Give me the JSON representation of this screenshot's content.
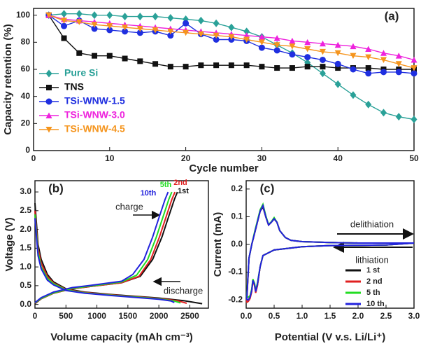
{
  "chart_data": [
    {
      "type": "line",
      "title": "(a)",
      "x_label": "Cycle number",
      "y_label": "Capacity retention (%)",
      "xlim": [
        0,
        50
      ],
      "ylim": [
        0,
        105
      ],
      "xticks": [
        0,
        10,
        20,
        30,
        40,
        50
      ],
      "yticks": [
        0,
        20,
        40,
        60,
        80,
        100
      ],
      "x": [
        2,
        4,
        6,
        8,
        10,
        12,
        14,
        16,
        18,
        20,
        22,
        24,
        26,
        28,
        30,
        32,
        34,
        36,
        38,
        40,
        42,
        44,
        46,
        48,
        50
      ],
      "series": [
        {
          "name": "Pure Si",
          "color": "#2aa198",
          "marker": "diamond",
          "values": [
            100,
            101,
            101,
            100,
            100,
            99,
            99,
            99,
            98,
            97,
            96,
            94,
            91,
            88,
            84,
            78,
            72,
            65,
            57,
            49,
            41,
            34,
            28,
            25,
            23
          ]
        },
        {
          "name": "TNS",
          "color": "#111111",
          "marker": "square",
          "values": [
            100,
            83,
            72,
            70,
            70,
            68,
            66,
            64,
            62,
            62,
            63,
            63,
            63,
            63,
            62,
            61,
            61,
            62,
            62,
            61,
            61,
            61,
            60,
            60,
            60
          ]
        },
        {
          "name": "TSi-WNW-1.5",
          "color": "#1f2fe0",
          "marker": "circle",
          "values": [
            100,
            92,
            96,
            90,
            89,
            88,
            87,
            88,
            85,
            94,
            86,
            82,
            82,
            81,
            76,
            74,
            71,
            69,
            67,
            64,
            60,
            57,
            58,
            58,
            57
          ]
        },
        {
          "name": "TSi-WNW-3.0",
          "color": "#ee22dd",
          "marker": "triangle-up",
          "values": [
            100,
            97,
            96,
            95,
            94,
            93,
            92,
            91,
            90,
            89,
            88,
            87,
            86,
            85,
            84,
            83,
            81,
            80,
            79,
            78,
            77,
            75,
            72,
            70,
            67
          ]
        },
        {
          "name": "TSi-WNW-4.5",
          "color": "#f5951e",
          "marker": "triangle-down",
          "values": [
            100,
            96,
            95,
            93,
            92,
            91,
            90,
            89,
            88,
            87,
            86,
            85,
            84,
            82,
            80,
            78,
            77,
            75,
            73,
            72,
            70,
            69,
            67,
            64,
            61
          ]
        }
      ]
    },
    {
      "type": "curves",
      "title": "(b)",
      "x_label": "Volume capacity (mAh cm⁻³)",
      "y_label": "Voltage (V)",
      "annotations": [
        "charge",
        "discharge"
      ],
      "xlim": [
        0,
        2800
      ],
      "ylim": [
        -0.1,
        3.3
      ],
      "xticks": [
        0,
        500,
        1000,
        1500,
        2000,
        2500
      ],
      "yticks": [
        {
          "value": 0,
          "label": "0.0"
        },
        0.5,
        {
          "value": 1,
          "label": "1.0"
        },
        1.5,
        {
          "value": 2,
          "label": "2.0"
        },
        2.5,
        {
          "value": 3,
          "label": "3.0"
        }
      ],
      "series": [
        {
          "name": "1st",
          "color": "#111111",
          "discharge": {
            "x": [
              0,
              50,
              100,
              200,
              300,
              500,
              800,
              1200,
              1600,
              2000,
              2400,
              2700
            ],
            "y": [
              2.7,
              1.6,
              1.2,
              0.8,
              0.6,
              0.42,
              0.33,
              0.27,
              0.22,
              0.17,
              0.1,
              0.02
            ]
          },
          "charge": {
            "x": [
              0,
              100,
              300,
              600,
              1000,
              1400,
              1700,
              1900,
              2050,
              2150,
              2250,
              2300
            ],
            "y": [
              0.02,
              0.15,
              0.3,
              0.42,
              0.5,
              0.58,
              0.75,
              1.2,
              1.8,
              2.3,
              2.8,
              3.0
            ]
          }
        },
        {
          "name": "2nd",
          "color": "#e02020",
          "discharge": {
            "x": [
              0,
              50,
              100,
              200,
              300,
              500,
              800,
              1200,
              1600,
              2000,
              2300,
              2450
            ],
            "y": [
              2.5,
              1.5,
              1.1,
              0.75,
              0.57,
              0.4,
              0.32,
              0.26,
              0.21,
              0.16,
              0.1,
              0.03
            ]
          },
          "charge": {
            "x": [
              0,
              100,
              300,
              600,
              1000,
              1400,
              1680,
              1870,
              2010,
              2110,
              2210,
              2260
            ],
            "y": [
              0.03,
              0.15,
              0.3,
              0.42,
              0.5,
              0.58,
              0.75,
              1.2,
              1.8,
              2.3,
              2.8,
              3.0
            ]
          }
        },
        {
          "name": "5th",
          "color": "#22dd22",
          "discharge": {
            "x": [
              0,
              50,
              100,
              200,
              300,
              500,
              800,
              1200,
              1600,
              2000,
              2250,
              2350
            ],
            "y": [
              2.4,
              1.4,
              1.0,
              0.7,
              0.55,
              0.39,
              0.31,
              0.25,
              0.2,
              0.15,
              0.09,
              0.04
            ]
          },
          "charge": {
            "x": [
              0,
              100,
              300,
              600,
              1000,
              1400,
              1640,
              1820,
              1960,
              2060,
              2160,
              2210
            ],
            "y": [
              0.04,
              0.16,
              0.31,
              0.43,
              0.51,
              0.6,
              0.78,
              1.2,
              1.8,
              2.3,
              2.8,
              3.0
            ]
          }
        },
        {
          "name": "10th",
          "color": "#2222dd",
          "discharge": {
            "x": [
              0,
              50,
              100,
              200,
              300,
              500,
              800,
              1200,
              1600,
              2000,
              2200,
              2250
            ],
            "y": [
              2.3,
              1.3,
              0.95,
              0.65,
              0.52,
              0.37,
              0.3,
              0.24,
              0.19,
              0.14,
              0.09,
              0.05
            ]
          },
          "charge": {
            "x": [
              0,
              100,
              300,
              600,
              1000,
              1400,
              1580,
              1760,
              1900,
              2000,
              2100,
              2150
            ],
            "y": [
              0.05,
              0.18,
              0.33,
              0.45,
              0.53,
              0.62,
              0.8,
              1.2,
              1.8,
              2.3,
              2.8,
              3.0
            ]
          }
        }
      ]
    },
    {
      "type": "cv",
      "title": "(c)",
      "x_label": "Potential (V v.s. Li/Li⁺)",
      "y_label": "Current (mA)",
      "annotations": [
        "delithiation",
        "lithiation"
      ],
      "xlim": [
        0,
        3.0
      ],
      "ylim": [
        -0.23,
        0.23
      ],
      "xticks": [
        {
          "value": 0,
          "label": "0.0"
        },
        0.5,
        {
          "value": 1,
          "label": "1.0"
        },
        1.5,
        {
          "value": 2,
          "label": "2.0"
        },
        2.5,
        {
          "value": 3,
          "label": "3.0"
        }
      ],
      "yticks": [
        -0.2,
        -0.1,
        {
          "value": 0,
          "label": "0.0"
        },
        0.1,
        0.2
      ],
      "series": [
        {
          "name": "1 st",
          "color": "#111111",
          "x": [
            0.01,
            0.05,
            0.1,
            0.15,
            0.2,
            0.25,
            0.3,
            0.35,
            0.4,
            0.45,
            0.5,
            0.55,
            0.6,
            0.7,
            0.8,
            1.0,
            1.5,
            2.0,
            2.5,
            3.0,
            2.5,
            2.0,
            1.5,
            1.0,
            0.5,
            0.3,
            0.25,
            0.2,
            0.17,
            0.15,
            0.12,
            0.1,
            0.07,
            0.04,
            0.01
          ],
          "y": [
            -0.2,
            -0.05,
            0.0,
            0.04,
            0.08,
            0.12,
            0.135,
            0.1,
            0.07,
            0.08,
            0.092,
            0.08,
            0.05,
            0.025,
            0.015,
            0.01,
            0.007,
            0.005,
            0.005,
            0.005,
            -0.002,
            -0.003,
            -0.004,
            -0.008,
            -0.02,
            -0.04,
            -0.08,
            -0.15,
            -0.17,
            -0.145,
            -0.13,
            -0.165,
            -0.19,
            -0.2,
            -0.2
          ]
        },
        {
          "name": "2 nd",
          "color": "#e02020",
          "x": [
            0.01,
            0.05,
            0.1,
            0.15,
            0.2,
            0.25,
            0.3,
            0.35,
            0.4,
            0.45,
            0.5,
            0.55,
            0.6,
            0.7,
            0.8,
            1.0,
            1.5,
            2.0,
            2.5,
            3.0,
            2.5,
            2.0,
            1.5,
            1.0,
            0.5,
            0.3,
            0.25,
            0.2,
            0.17,
            0.15,
            0.12,
            0.1,
            0.07,
            0.04,
            0.01
          ],
          "y": [
            -0.21,
            -0.05,
            0.0,
            0.04,
            0.08,
            0.12,
            0.14,
            0.1,
            0.07,
            0.08,
            0.095,
            0.08,
            0.05,
            0.025,
            0.015,
            0.01,
            0.007,
            0.005,
            0.005,
            0.005,
            -0.002,
            -0.003,
            -0.004,
            -0.008,
            -0.02,
            -0.04,
            -0.08,
            -0.15,
            -0.175,
            -0.15,
            -0.13,
            -0.17,
            -0.195,
            -0.205,
            -0.21
          ]
        },
        {
          "name": "5 th",
          "color": "#22dd22",
          "x": [
            0.01,
            0.05,
            0.1,
            0.15,
            0.2,
            0.25,
            0.3,
            0.35,
            0.4,
            0.45,
            0.5,
            0.55,
            0.6,
            0.7,
            0.8,
            1.0,
            1.5,
            2.0,
            2.5,
            3.0,
            2.5,
            2.0,
            1.5,
            1.0,
            0.5,
            0.3,
            0.25,
            0.2,
            0.17,
            0.15,
            0.12,
            0.1,
            0.07,
            0.04,
            0.01
          ],
          "y": [
            -0.19,
            -0.05,
            0.0,
            0.045,
            0.085,
            0.125,
            0.145,
            0.105,
            0.072,
            0.082,
            0.097,
            0.08,
            0.05,
            0.025,
            0.015,
            0.01,
            0.007,
            0.005,
            0.005,
            0.005,
            -0.002,
            -0.003,
            -0.004,
            -0.008,
            -0.02,
            -0.04,
            -0.08,
            -0.14,
            -0.165,
            -0.14,
            -0.125,
            -0.16,
            -0.185,
            -0.19,
            -0.19
          ]
        },
        {
          "name": "10 th",
          "color": "#2222dd",
          "x": [
            0.01,
            0.05,
            0.1,
            0.15,
            0.2,
            0.25,
            0.3,
            0.35,
            0.4,
            0.45,
            0.5,
            0.55,
            0.6,
            0.7,
            0.8,
            1.0,
            1.5,
            2.0,
            2.5,
            3.0,
            2.5,
            2.0,
            1.5,
            1.0,
            0.5,
            0.3,
            0.25,
            0.2,
            0.17,
            0.15,
            0.12,
            0.1,
            0.07,
            0.04,
            0.01
          ],
          "y": [
            -0.2,
            -0.05,
            0.0,
            0.04,
            0.08,
            0.12,
            0.14,
            0.1,
            0.07,
            0.08,
            0.093,
            0.08,
            0.05,
            0.025,
            0.015,
            0.01,
            0.007,
            0.005,
            0.005,
            0.005,
            -0.002,
            -0.003,
            -0.004,
            -0.008,
            -0.02,
            -0.04,
            -0.08,
            -0.145,
            -0.17,
            -0.145,
            -0.13,
            -0.165,
            -0.19,
            -0.2,
            -0.2
          ]
        }
      ]
    }
  ]
}
